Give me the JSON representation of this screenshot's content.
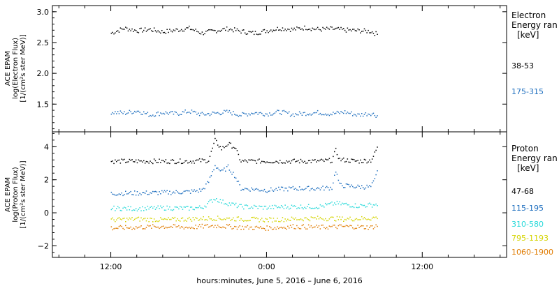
{
  "chart_data": [
    {
      "type": "scatter",
      "panel": "electron",
      "ylabel_lines": [
        "ACE EPAM",
        "log(Electron Flux)",
        "[1/(cm²s ster MeV)]"
      ],
      "ylim": [
        1.05,
        3.1
      ],
      "yticks": [
        1.5,
        2.0,
        2.5,
        3.0
      ],
      "ytick_labels": [
        "1.5",
        "2.0",
        "2.5",
        "3.0"
      ],
      "legend_title": [
        "Electron",
        "Energy ran",
        "[keV]"
      ],
      "series": [
        {
          "name": "38-53",
          "color": "#000000",
          "points": [
            [
              -12.0,
              2.66
            ],
            [
              -11.0,
              2.74
            ],
            [
              -10.0,
              2.7
            ],
            [
              -9.0,
              2.72
            ],
            [
              -8.0,
              2.68
            ],
            [
              -7.0,
              2.71
            ],
            [
              -6.0,
              2.74
            ],
            [
              -5.0,
              2.66
            ],
            [
              -4.0,
              2.7
            ],
            [
              -3.0,
              2.73
            ],
            [
              -2.0,
              2.69
            ],
            [
              -1.0,
              2.66
            ],
            [
              0.0,
              2.7
            ],
            [
              1.0,
              2.74
            ],
            [
              2.0,
              2.72
            ],
            [
              3.0,
              2.75
            ],
            [
              4.0,
              2.72
            ],
            [
              5.0,
              2.73
            ],
            [
              6.0,
              2.71
            ],
            [
              7.0,
              2.7
            ],
            [
              8.0,
              2.69
            ],
            [
              8.5,
              2.64
            ]
          ]
        },
        {
          "name": "175-315",
          "color": "#1f6fbf",
          "points": [
            [
              -12.0,
              1.38
            ],
            [
              -11.0,
              1.36
            ],
            [
              -10.0,
              1.4
            ],
            [
              -9.0,
              1.33
            ],
            [
              -8.0,
              1.37
            ],
            [
              -7.0,
              1.35
            ],
            [
              -6.0,
              1.39
            ],
            [
              -5.0,
              1.34
            ],
            [
              -4.0,
              1.36
            ],
            [
              -3.0,
              1.38
            ],
            [
              -2.0,
              1.33
            ],
            [
              -1.0,
              1.37
            ],
            [
              0.0,
              1.35
            ],
            [
              1.0,
              1.38
            ],
            [
              2.0,
              1.34
            ],
            [
              3.0,
              1.36
            ],
            [
              4.0,
              1.37
            ],
            [
              5.0,
              1.35
            ],
            [
              6.0,
              1.38
            ],
            [
              7.0,
              1.33
            ],
            [
              8.0,
              1.36
            ],
            [
              8.5,
              1.32
            ]
          ]
        }
      ]
    },
    {
      "type": "scatter",
      "panel": "proton",
      "ylabel_lines": [
        "ACE EPAM",
        "log(Proton Flux)",
        "[1/(cm²s ster MeV)]"
      ],
      "ylim": [
        -2.7,
        4.9
      ],
      "yticks": [
        -2,
        0,
        2,
        4
      ],
      "ytick_labels": [
        "−2",
        "0",
        "2",
        "4"
      ],
      "legend_title": [
        "Proton",
        "Energy ran",
        "[keV]"
      ],
      "series": [
        {
          "name": "47-68",
          "color": "#000000",
          "points": [
            [
              -12.0,
              3.15
            ],
            [
              -10.0,
              3.15
            ],
            [
              -8.0,
              3.15
            ],
            [
              -6.0,
              3.15
            ],
            [
              -4.5,
              3.2
            ],
            [
              -4.0,
              4.4
            ],
            [
              -3.5,
              3.9
            ],
            [
              -3.0,
              4.2
            ],
            [
              -2.5,
              4.0
            ],
            [
              -2.0,
              3.15
            ],
            [
              0.0,
              3.15
            ],
            [
              2.0,
              3.15
            ],
            [
              4.0,
              3.15
            ],
            [
              5.0,
              3.2
            ],
            [
              5.3,
              3.8
            ],
            [
              5.6,
              3.25
            ],
            [
              7.0,
              3.15
            ],
            [
              8.0,
              3.2
            ],
            [
              8.3,
              3.6
            ],
            [
              8.5,
              4.0
            ]
          ]
        },
        {
          "name": "115-195",
          "color": "#1f6fbf",
          "points": [
            [
              -12.0,
              1.2
            ],
            [
              -10.0,
              1.22
            ],
            [
              -8.0,
              1.25
            ],
            [
              -6.0,
              1.3
            ],
            [
              -5.0,
              1.4
            ],
            [
              -4.5,
              1.9
            ],
            [
              -4.0,
              2.9
            ],
            [
              -3.5,
              2.5
            ],
            [
              -3.0,
              2.8
            ],
            [
              -2.5,
              2.3
            ],
            [
              -2.0,
              1.5
            ],
            [
              0.0,
              1.4
            ],
            [
              2.0,
              1.5
            ],
            [
              4.0,
              1.5
            ],
            [
              5.0,
              1.55
            ],
            [
              5.3,
              2.6
            ],
            [
              5.6,
              1.7
            ],
            [
              7.0,
              1.6
            ],
            [
              8.0,
              1.6
            ],
            [
              8.3,
              2.0
            ],
            [
              8.5,
              2.5
            ]
          ]
        },
        {
          "name": "310-580",
          "color": "#27d9d9",
          "points": [
            [
              -12.0,
              0.3
            ],
            [
              -10.0,
              0.28
            ],
            [
              -8.0,
              0.32
            ],
            [
              -6.0,
              0.3
            ],
            [
              -5.0,
              0.35
            ],
            [
              -4.0,
              0.9
            ],
            [
              -3.5,
              0.7
            ],
            [
              -3.0,
              0.6
            ],
            [
              -2.0,
              0.4
            ],
            [
              0.0,
              0.35
            ],
            [
              2.0,
              0.4
            ],
            [
              4.0,
              0.4
            ],
            [
              5.3,
              0.6
            ],
            [
              7.0,
              0.45
            ],
            [
              8.0,
              0.5
            ],
            [
              8.5,
              0.55
            ]
          ]
        },
        {
          "name": "795-1193",
          "color": "#d4d400",
          "points": [
            [
              -12.0,
              -0.4
            ],
            [
              -10.0,
              -0.35
            ],
            [
              -8.0,
              -0.4
            ],
            [
              -6.0,
              -0.35
            ],
            [
              -4.0,
              -0.3
            ],
            [
              -2.0,
              -0.35
            ],
            [
              0.0,
              -0.4
            ],
            [
              2.0,
              -0.35
            ],
            [
              4.0,
              -0.3
            ],
            [
              6.0,
              -0.35
            ],
            [
              8.0,
              -0.3
            ],
            [
              8.5,
              -0.25
            ]
          ]
        },
        {
          "name": "1060-1900",
          "color": "#e07b00",
          "points": [
            [
              -12.0,
              -0.9
            ],
            [
              -10.0,
              -0.85
            ],
            [
              -8.0,
              -0.8
            ],
            [
              -6.0,
              -0.85
            ],
            [
              -4.0,
              -0.75
            ],
            [
              -2.0,
              -0.85
            ],
            [
              0.0,
              -0.9
            ],
            [
              2.0,
              -0.8
            ],
            [
              4.0,
              -0.85
            ],
            [
              6.0,
              -0.8
            ],
            [
              8.0,
              -0.85
            ],
            [
              8.5,
              -0.75
            ]
          ]
        }
      ]
    }
  ],
  "xaxis": {
    "xlim": [
      -16.5,
      18.5
    ],
    "ticks": [
      -12,
      0,
      12
    ],
    "tick_labels": [
      "12:00",
      "0:00",
      "12:00"
    ],
    "label": "hours:minutes,  June  5, 2016 – June  6, 2016"
  }
}
